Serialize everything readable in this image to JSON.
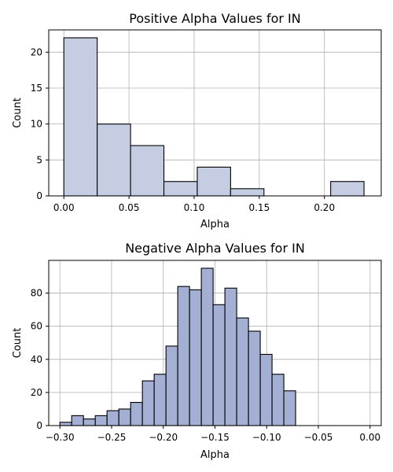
{
  "colors": {
    "positive_bar": "#c4cde2",
    "negative_bar": "#a3afd3",
    "bar_edge": "#000000",
    "grid": "#b0b0b0",
    "axis": "#000000"
  },
  "chart_data": [
    {
      "type": "bar",
      "title": "Positive Alpha Values for IN",
      "xlabel": "Alpha",
      "ylabel": "Count",
      "grid": true,
      "xlim": [
        -0.0116,
        0.2436
      ],
      "ylim": [
        0,
        23.1
      ],
      "xticks": [
        0.0,
        0.05,
        0.1,
        0.15,
        0.2
      ],
      "xtick_labels": [
        "0.00",
        "0.05",
        "0.10",
        "0.15",
        "0.20"
      ],
      "yticks": [
        0,
        5,
        10,
        15,
        20
      ],
      "ytick_labels": [
        "0",
        "5",
        "10",
        "15",
        "20"
      ],
      "bins": [
        {
          "x0": 0.0,
          "x1": 0.0256,
          "count": 22
        },
        {
          "x0": 0.0256,
          "x1": 0.0512,
          "count": 10
        },
        {
          "x0": 0.0512,
          "x1": 0.0768,
          "count": 7
        },
        {
          "x0": 0.0768,
          "x1": 0.1024,
          "count": 2
        },
        {
          "x0": 0.1024,
          "x1": 0.128,
          "count": 4
        },
        {
          "x0": 0.128,
          "x1": 0.1536,
          "count": 1
        },
        {
          "x0": 0.1536,
          "x1": 0.1792,
          "count": 0
        },
        {
          "x0": 0.1792,
          "x1": 0.2048,
          "count": 0
        },
        {
          "x0": 0.2048,
          "x1": 0.2304,
          "count": 2
        }
      ]
    },
    {
      "type": "bar",
      "title": "Negative Alpha Values for IN",
      "xlabel": "Alpha",
      "ylabel": "Count",
      "grid": true,
      "xlim": [
        -0.3108,
        0.0108
      ],
      "ylim": [
        0,
        99.75
      ],
      "xticks": [
        -0.3,
        -0.25,
        -0.2,
        -0.15,
        -0.1,
        -0.05,
        0.0
      ],
      "xtick_labels": [
        "−0.30",
        "−0.25",
        "−0.20",
        "−0.15",
        "−0.10",
        "−0.05",
        "0.00"
      ],
      "yticks": [
        0,
        20,
        40,
        60,
        80
      ],
      "ytick_labels": [
        "0",
        "20",
        "40",
        "60",
        "80"
      ],
      "bins": [
        {
          "x0": -0.3,
          "x1": -0.2886,
          "count": 2
        },
        {
          "x0": -0.2886,
          "x1": -0.2772,
          "count": 6
        },
        {
          "x0": -0.2772,
          "x1": -0.2658,
          "count": 4
        },
        {
          "x0": -0.2658,
          "x1": -0.2544,
          "count": 6
        },
        {
          "x0": -0.2544,
          "x1": -0.243,
          "count": 9
        },
        {
          "x0": -0.243,
          "x1": -0.2316,
          "count": 10
        },
        {
          "x0": -0.2316,
          "x1": -0.2202,
          "count": 14
        },
        {
          "x0": -0.2202,
          "x1": -0.2088,
          "count": 27
        },
        {
          "x0": -0.2088,
          "x1": -0.1974,
          "count": 31
        },
        {
          "x0": -0.1974,
          "x1": -0.186,
          "count": 48
        },
        {
          "x0": -0.186,
          "x1": -0.1746,
          "count": 84
        },
        {
          "x0": -0.1746,
          "x1": -0.1632,
          "count": 82
        },
        {
          "x0": -0.1632,
          "x1": -0.1518,
          "count": 95
        },
        {
          "x0": -0.1518,
          "x1": -0.1404,
          "count": 73
        },
        {
          "x0": -0.1404,
          "x1": -0.129,
          "count": 83
        },
        {
          "x0": -0.129,
          "x1": -0.1176,
          "count": 65
        },
        {
          "x0": -0.1176,
          "x1": -0.1062,
          "count": 57
        },
        {
          "x0": -0.1062,
          "x1": -0.0948,
          "count": 43
        },
        {
          "x0": -0.0948,
          "x1": -0.0834,
          "count": 31
        },
        {
          "x0": -0.0834,
          "x1": -0.072,
          "count": 21
        }
      ]
    }
  ]
}
